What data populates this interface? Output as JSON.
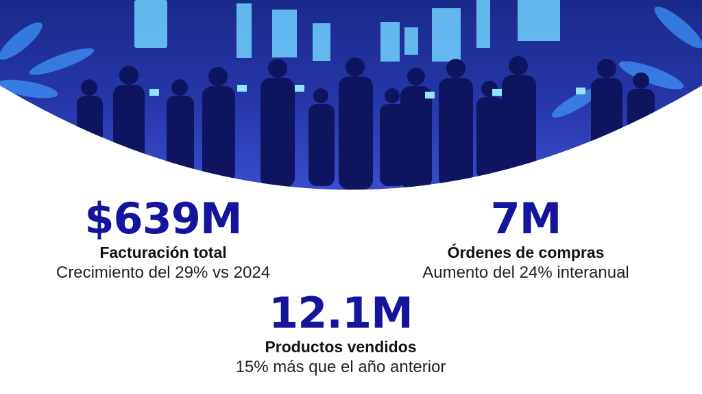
{
  "stats": [
    {
      "value": "$639M",
      "label": "Facturación total",
      "note": "Crecimiento del 29% vs 2024"
    },
    {
      "value": "7M",
      "label": "Órdenes de compras",
      "note": "Aumento del 24% interanual"
    },
    {
      "value": "12.1M",
      "label": "Productos vendidos",
      "note": "15% más que el año anterior"
    }
  ]
}
